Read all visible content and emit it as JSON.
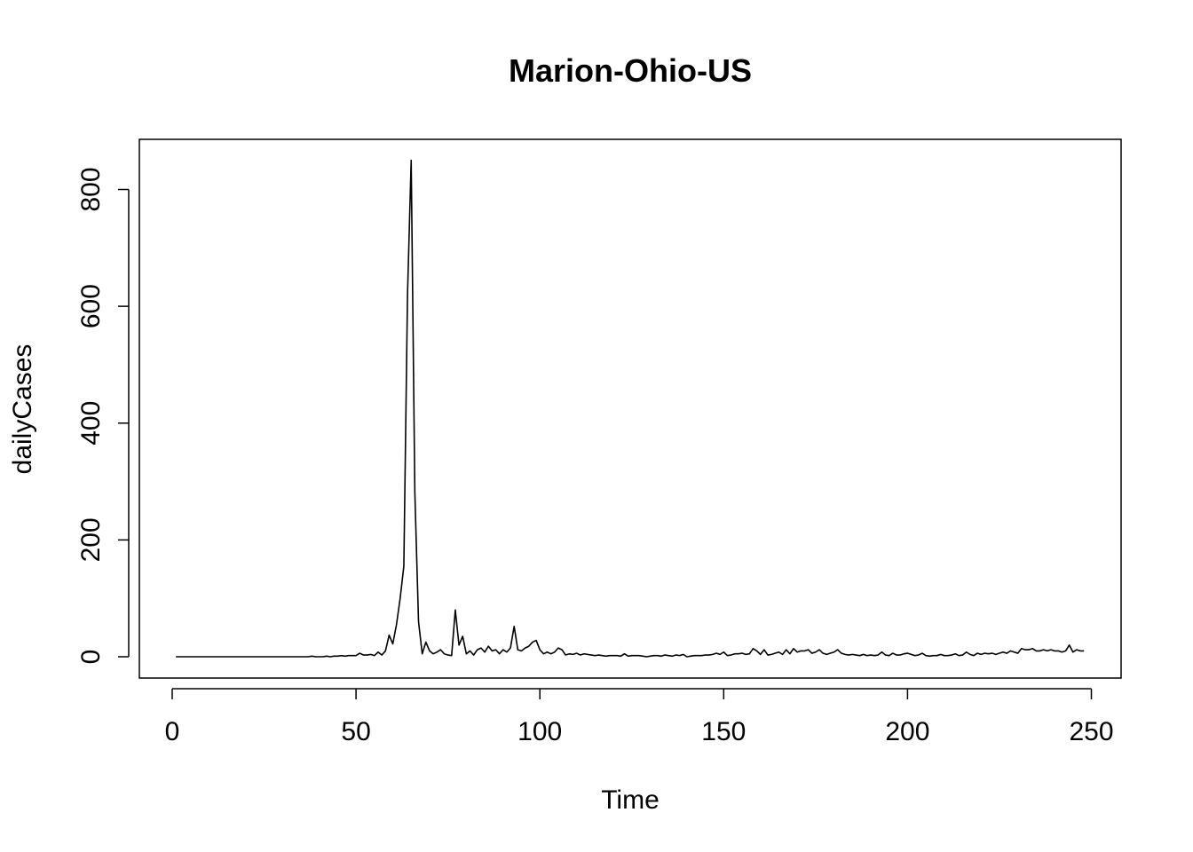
{
  "chart_data": {
    "type": "line",
    "title": "Marion-Ohio-US",
    "xlabel": "Time",
    "ylabel": "dailyCases",
    "xlim": [
      1,
      248
    ],
    "ylim": [
      0,
      850
    ],
    "xticks": [
      0,
      50,
      100,
      150,
      200,
      250
    ],
    "xtick_labels": [
      "0",
      "50",
      "100",
      "150",
      "200",
      "250"
    ],
    "yticks": [
      0,
      200,
      400,
      600,
      800
    ],
    "ytick_labels": [
      "0",
      "200",
      "400",
      "600",
      "800"
    ],
    "grid": false,
    "legend": "none",
    "series": [
      {
        "x": [
          1,
          2,
          3,
          4,
          5,
          6,
          7,
          8,
          9,
          10,
          11,
          12,
          13,
          14,
          15,
          16,
          17,
          18,
          19,
          20,
          21,
          22,
          23,
          24,
          25,
          26,
          27,
          28,
          29,
          30,
          31,
          32,
          33,
          34,
          35,
          36,
          37,
          38,
          39,
          40,
          41,
          42,
          43,
          44,
          45,
          46,
          47,
          48,
          49,
          50,
          51,
          52,
          53,
          54,
          55,
          56,
          57,
          58,
          59,
          60,
          61,
          62,
          63,
          64,
          65,
          66,
          67,
          68,
          69,
          70,
          71,
          72,
          73,
          74,
          75,
          76,
          77,
          78,
          79,
          80,
          81,
          82,
          83,
          84,
          85,
          86,
          87,
          88,
          89,
          90,
          91,
          92,
          93,
          94,
          95,
          96,
          97,
          98,
          99,
          100,
          101,
          102,
          103,
          104,
          105,
          106,
          107,
          108,
          109,
          110,
          111,
          112,
          113,
          114,
          115,
          116,
          117,
          118,
          119,
          120,
          121,
          122,
          123,
          124,
          125,
          126,
          127,
          128,
          129,
          130,
          131,
          132,
          133,
          134,
          135,
          136,
          137,
          138,
          139,
          140,
          141,
          142,
          143,
          144,
          145,
          146,
          147,
          148,
          149,
          150,
          151,
          152,
          153,
          154,
          155,
          156,
          157,
          158,
          159,
          160,
          161,
          162,
          163,
          164,
          165,
          166,
          167,
          168,
          169,
          170,
          171,
          172,
          173,
          174,
          175,
          176,
          177,
          178,
          179,
          180,
          181,
          182,
          183,
          184,
          185,
          186,
          187,
          188,
          189,
          190,
          191,
          192,
          193,
          194,
          195,
          196,
          197,
          198,
          199,
          200,
          201,
          202,
          203,
          204,
          205,
          206,
          207,
          208,
          209,
          210,
          211,
          212,
          213,
          214,
          215,
          216,
          217,
          218,
          219,
          220,
          221,
          222,
          223,
          224,
          225,
          226,
          227,
          228,
          229,
          230,
          231,
          232,
          233,
          234,
          235,
          236,
          237,
          238,
          239,
          240,
          241,
          242,
          243,
          244,
          245,
          246,
          247,
          248
        ],
        "y": [
          0,
          0,
          0,
          0,
          0,
          0,
          0,
          0,
          0,
          0,
          0,
          0,
          0,
          0,
          0,
          0,
          0,
          0,
          0,
          0,
          0,
          0,
          0,
          0,
          0,
          0,
          0,
          0,
          0,
          0,
          0,
          0,
          0,
          0,
          0,
          0,
          0,
          1,
          0,
          0,
          0,
          1,
          0,
          1,
          1,
          2,
          1,
          2,
          2,
          2,
          6,
          3,
          3,
          4,
          2,
          8,
          3,
          10,
          37,
          22,
          55,
          100,
          155,
          620,
          850,
          280,
          60,
          5,
          25,
          10,
          5,
          8,
          12,
          5,
          3,
          2,
          80,
          20,
          35,
          5,
          10,
          3,
          12,
          15,
          8,
          18,
          10,
          12,
          5,
          12,
          8,
          15,
          52,
          12,
          10,
          15,
          18,
          25,
          28,
          12,
          5,
          8,
          5,
          8,
          15,
          12,
          3,
          5,
          4,
          6,
          3,
          5,
          4,
          3,
          2,
          3,
          2,
          1,
          2,
          2,
          2,
          1,
          5,
          1,
          2,
          2,
          2,
          1,
          0,
          1,
          2,
          2,
          1,
          3,
          2,
          1,
          3,
          2,
          4,
          0,
          1,
          2,
          2,
          2,
          3,
          3,
          4,
          6,
          4,
          8,
          2,
          3,
          5,
          5,
          6,
          4,
          5,
          14,
          10,
          4,
          12,
          3,
          4,
          6,
          8,
          4,
          12,
          5,
          14,
          8,
          10,
          10,
          12,
          6,
          8,
          12,
          6,
          4,
          6,
          8,
          12,
          6,
          4,
          3,
          4,
          3,
          2,
          4,
          2,
          3,
          2,
          3,
          8,
          3,
          2,
          6,
          3,
          3,
          5,
          6,
          4,
          2,
          3,
          6,
          2,
          1,
          2,
          2,
          4,
          2,
          2,
          3,
          5,
          2,
          3,
          8,
          4,
          2,
          6,
          4,
          6,
          5,
          6,
          4,
          6,
          8,
          6,
          10,
          8,
          6,
          14,
          12,
          12,
          14,
          10,
          10,
          12,
          10,
          12,
          10,
          10,
          8,
          10,
          20,
          8,
          12,
          10,
          10
        ]
      }
    ]
  }
}
